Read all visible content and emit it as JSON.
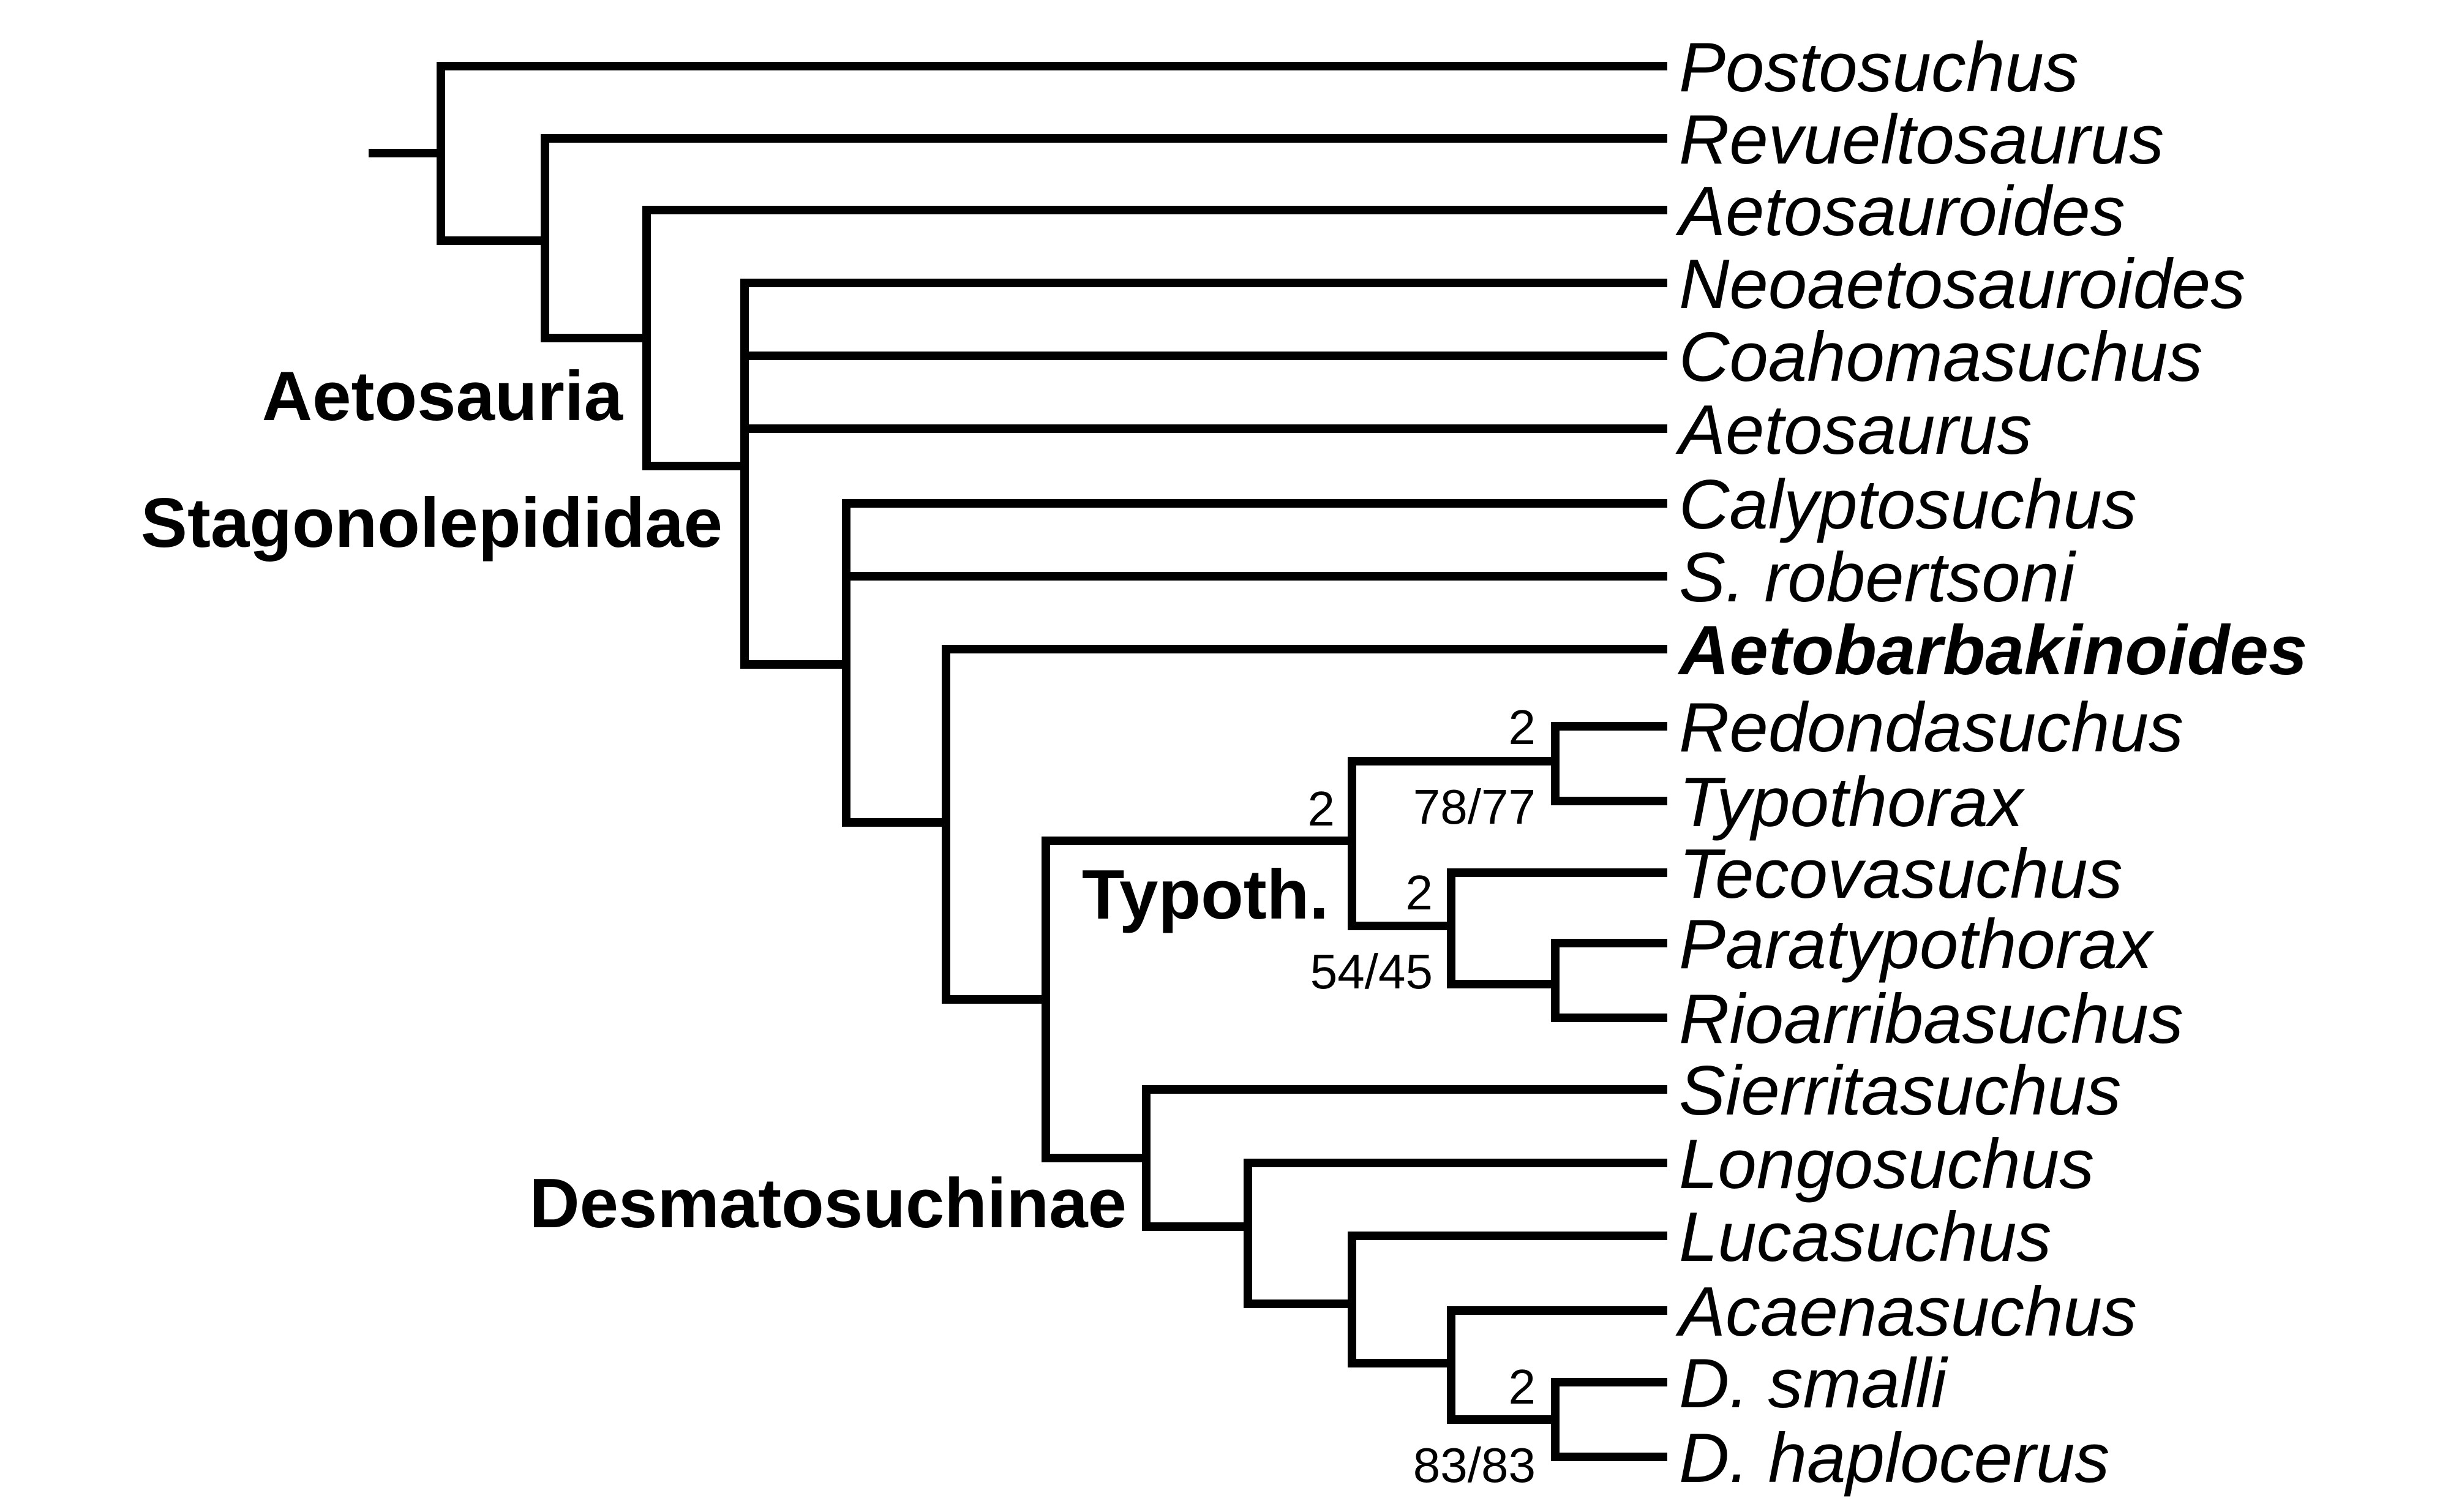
{
  "taxa": [
    {
      "name": "Postosuchus"
    },
    {
      "name": "Revueltosaurus"
    },
    {
      "name": "Aetosauroides"
    },
    {
      "name": "Neoaetosauroides"
    },
    {
      "name": "Coahomasuchus"
    },
    {
      "name": "Aetosaurus"
    },
    {
      "name": "Calyptosuchus"
    },
    {
      "name": "S. robertsoni"
    },
    {
      "name": "Aetobarbakinoides",
      "bold": true
    },
    {
      "name": "Redondasuchus"
    },
    {
      "name": "Typothorax"
    },
    {
      "name": "Tecovasuchus"
    },
    {
      "name": "Paratypothorax"
    },
    {
      "name": "Rioarribasuchus"
    },
    {
      "name": "Sierritasuchus"
    },
    {
      "name": "Longosuchus"
    },
    {
      "name": "Lucasuchus"
    },
    {
      "name": "Acaenasuchus"
    },
    {
      "name": "D. smalli"
    },
    {
      "name": "D. haplocerus"
    }
  ],
  "clade_labels": {
    "aetosauria": "Aetosauria",
    "stagonolepididae": "Stagonolepididae",
    "typoth": "Typoth.",
    "desmatosuchinae": "Desmatosuchinae"
  },
  "support_values": {
    "redondasuchus_typothorax_bremer": "2",
    "redondasuchus_typothorax_bootstrap": "78/77",
    "typothoracini_bremer": "2",
    "tecovasuchus_group_bremer": "2",
    "tecovasuchus_group_bootstrap": "54/45",
    "desmatosuchus_bremer": "2",
    "desmatosuchus_bootstrap": "83/83"
  }
}
